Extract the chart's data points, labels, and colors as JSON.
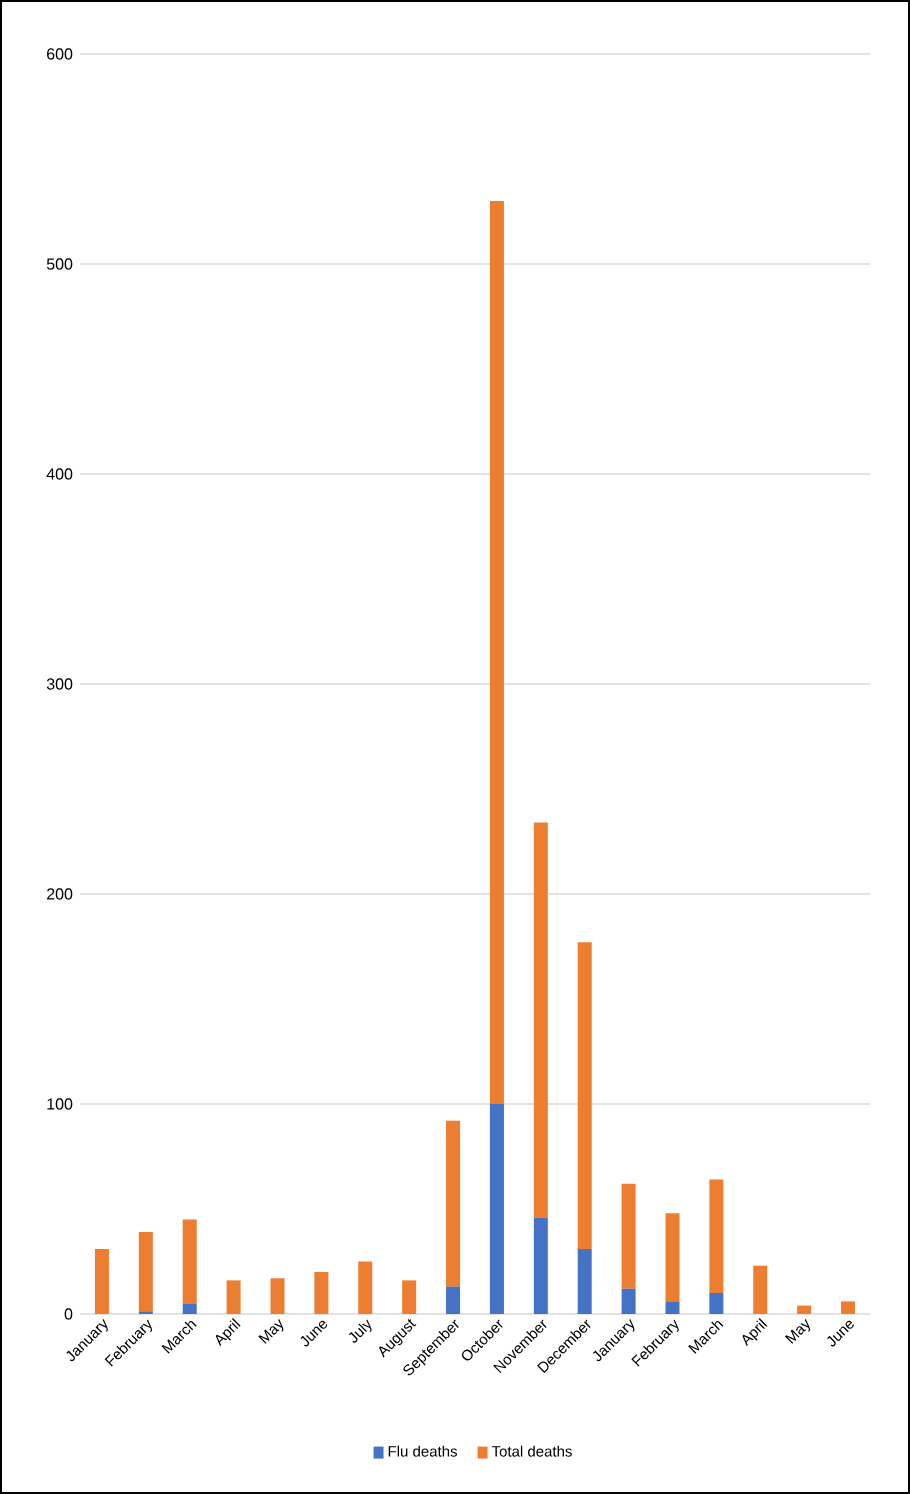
{
  "chart_data": {
    "type": "bar",
    "stacked": true,
    "categories": [
      "January",
      "February",
      "March",
      "April",
      "May",
      "June",
      "July",
      "August",
      "September",
      "October",
      "November",
      "December",
      "January",
      "February",
      "March",
      "April",
      "May",
      "June"
    ],
    "series": [
      {
        "name": "Flu deaths",
        "color": "#4472c4",
        "values": [
          0,
          1,
          5,
          0,
          0,
          0,
          0,
          0,
          13,
          100,
          46,
          31,
          12,
          6,
          10,
          0,
          0,
          0
        ]
      },
      {
        "name": "Total deaths",
        "color": "#ed7d31",
        "values": [
          31,
          38,
          40,
          16,
          17,
          20,
          25,
          16,
          79,
          430,
          188,
          146,
          50,
          42,
          54,
          23,
          4,
          6
        ]
      }
    ],
    "ylim": [
      0,
      600
    ],
    "yticks": [
      0,
      100,
      200,
      300,
      400,
      500,
      600
    ],
    "grid": "y",
    "legend": "bottom"
  }
}
